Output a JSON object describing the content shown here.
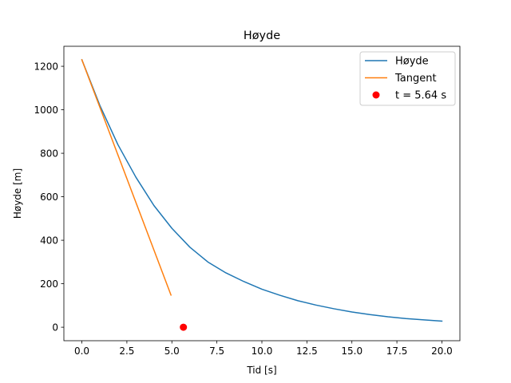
{
  "chart_data": {
    "type": "line",
    "title": "Høyde",
    "xlabel": "Tid [s]",
    "ylabel": "Høyde [m]",
    "xlim": [
      -1.0,
      21.0
    ],
    "ylim": [
      -62,
      1292
    ],
    "xticks": [
      0.0,
      2.5,
      5.0,
      7.5,
      10.0,
      12.5,
      15.0,
      17.5,
      20.0
    ],
    "xtick_labels": [
      "0.0",
      "2.5",
      "5.0",
      "7.5",
      "10.0",
      "12.5",
      "15.0",
      "17.5",
      "20.0"
    ],
    "yticks": [
      0,
      200,
      400,
      600,
      800,
      1000,
      1200
    ],
    "ytick_labels": [
      "0",
      "200",
      "400",
      "600",
      "800",
      "1000",
      "1200"
    ],
    "grid": false,
    "legend_position": "top-right",
    "series": [
      {
        "name": "Høyde",
        "kind": "line",
        "color": "#1f77b4",
        "x": [
          0.0,
          1.0,
          2.0,
          3.0,
          4.0,
          5.0,
          6.0,
          7.0,
          8.0,
          9.0,
          10.0,
          11.0,
          12.0,
          13.0,
          14.0,
          15.0,
          16.0,
          17.0,
          18.0,
          19.0,
          20.0
        ],
        "y": [
          1230,
          1020,
          840,
          690,
          560,
          455,
          368,
          300,
          250,
          210,
          175,
          147,
          122,
          102,
          85,
          70,
          58,
          48,
          40,
          34,
          28
        ]
      },
      {
        "name": "Tangent",
        "kind": "line",
        "color": "#ff7f0e",
        "x": [
          0.0,
          4.95
        ],
        "y": [
          1230,
          148
        ]
      },
      {
        "name": "t = 5.64 s",
        "kind": "scatter",
        "color": "#ff0000",
        "x": [
          5.64
        ],
        "y": [
          0
        ]
      }
    ]
  }
}
